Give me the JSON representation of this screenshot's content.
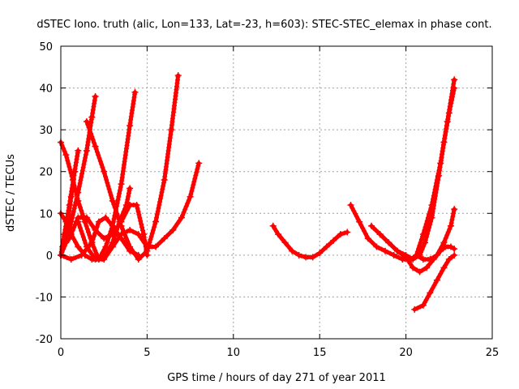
{
  "chart_data": {
    "type": "scatter",
    "title": "dSTEC Iono. truth (alic, Lon=133, Lat=-23, h=603): STEC-STEC_elemax in phase cont.",
    "xlabel": "GPS time / hours of day 271 of year 2011",
    "ylabel": "dSTEC  / TECUs",
    "xlim": [
      0,
      25
    ],
    "ylim": [
      -20,
      50
    ],
    "xticks": [
      0,
      5,
      10,
      15,
      20,
      25
    ],
    "yticks": [
      -20,
      -10,
      0,
      10,
      20,
      30,
      40,
      50
    ],
    "grid": true,
    "marker": "plus",
    "color": "#ff0000",
    "series": [
      {
        "x": [
          0.0,
          0.3,
          0.7,
          1.0,
          1.4,
          1.8,
          2.2,
          2.6,
          3.0,
          3.4,
          3.8,
          4.0
        ],
        "y": [
          27,
          24,
          18,
          13,
          8,
          3,
          -1,
          0,
          3,
          8,
          12,
          16
        ]
      },
      {
        "x": [
          0.0,
          0.3,
          0.6,
          1.0,
          1.4,
          1.8,
          2.2,
          2.6,
          3.0,
          3.5,
          4.0,
          4.3
        ],
        "y": [
          10,
          8,
          5,
          2,
          0,
          -1,
          -1,
          2,
          7,
          17,
          31,
          39
        ]
      },
      {
        "x": [
          0.0,
          0.2,
          0.5,
          0.8,
          1.0
        ],
        "y": [
          0,
          5,
          12,
          20,
          25
        ]
      },
      {
        "x": [
          0.0,
          0.3,
          0.6,
          1.0,
          1.5,
          1.8,
          2.0
        ],
        "y": [
          0,
          3,
          8,
          15,
          25,
          33,
          38
        ]
      },
      {
        "x": [
          0.1,
          0.5,
          1.0,
          1.5,
          2.0,
          2.5,
          3.0,
          3.5,
          4.0,
          4.4,
          4.8,
          5.0
        ],
        "y": [
          2,
          4,
          9,
          9,
          6,
          4,
          5,
          8,
          12,
          12,
          5,
          0
        ]
      },
      {
        "x": [
          0.0,
          0.6,
          1.2,
          1.8,
          2.2,
          2.6,
          3.0,
          3.5,
          4.0,
          4.5
        ],
        "y": [
          0,
          -1,
          0,
          3,
          8,
          9,
          7,
          4,
          1,
          0
        ]
      },
      {
        "x": [
          0.0,
          0.2,
          0.4,
          0.6,
          0.8
        ],
        "y": [
          0,
          3,
          8,
          14,
          20
        ]
      },
      {
        "x": [
          1.5,
          2.0,
          2.5,
          3.0,
          3.5,
          4.0,
          4.5,
          5.0,
          5.5,
          6.0,
          6.4,
          6.8
        ],
        "y": [
          32,
          26,
          20,
          13,
          7,
          2,
          -1,
          1,
          8,
          18,
          30,
          43
        ]
      },
      {
        "x": [
          1.0,
          1.5,
          2.0,
          2.5,
          3.0,
          3.5,
          4.0,
          4.5,
          5.0,
          5.5,
          6.0,
          6.5,
          7.0,
          7.5,
          8.0
        ],
        "y": [
          8,
          2,
          -1,
          -1,
          2,
          5,
          6,
          5,
          2,
          2,
          4,
          6,
          9,
          14,
          22
        ]
      },
      {
        "x": [
          12.3,
          12.6,
          13.0,
          13.4,
          13.8,
          14.2,
          14.6,
          15.0,
          15.4,
          15.8,
          16.2,
          16.6
        ],
        "y": [
          7,
          5,
          3,
          1,
          0,
          -0.5,
          -0.5,
          0.5,
          2,
          3.5,
          5,
          5.5
        ]
      },
      {
        "x": [
          16.8,
          17.3,
          17.8,
          18.3,
          18.8,
          19.3,
          19.8,
          20.3,
          20.6,
          21.0,
          21.5,
          22.0,
          22.4,
          22.8
        ],
        "y": [
          12,
          8,
          4,
          2,
          1,
          0,
          -1,
          -1,
          0,
          5,
          12,
          22,
          32,
          42
        ]
      },
      {
        "x": [
          18.0,
          18.5,
          19.0,
          19.5,
          20.0,
          20.4,
          20.8,
          21.1,
          21.5,
          21.9,
          22.2,
          22.5,
          22.8
        ],
        "y": [
          7,
          5,
          3,
          1,
          0,
          -1,
          0,
          3,
          9,
          19,
          27,
          34,
          40
        ]
      },
      {
        "x": [
          18.5,
          19.0,
          19.5,
          20.0,
          20.4,
          20.8,
          21.2,
          21.6,
          22.0,
          22.3,
          22.6,
          22.8
        ],
        "y": [
          5,
          3,
          1,
          -0.5,
          -3,
          -4,
          -3,
          -1,
          1,
          2,
          2,
          1.5
        ]
      },
      {
        "x": [
          20.5,
          21.0,
          21.4,
          21.8,
          22.2,
          22.5,
          22.8
        ],
        "y": [
          -13,
          -12,
          -9,
          -6,
          -3,
          -1,
          0
        ]
      },
      {
        "x": [
          20.6,
          21.0,
          21.4,
          21.8,
          22.2,
          22.6,
          22.8
        ],
        "y": [
          0,
          -1,
          -1,
          0,
          3,
          7,
          11
        ]
      }
    ]
  }
}
